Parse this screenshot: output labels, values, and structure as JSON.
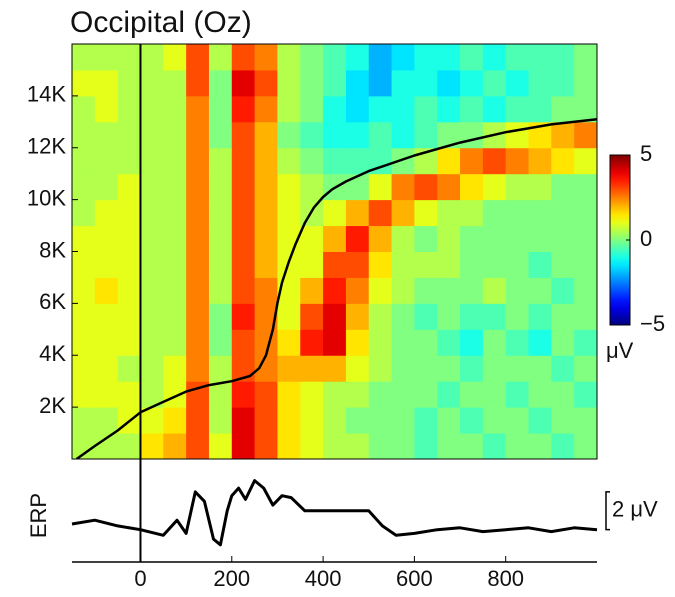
{
  "chart_data": [
    {
      "type": "heatmap",
      "title": "Occipital (Oz)",
      "x_edges": [
        -150,
        -100,
        -50,
        0,
        50,
        100,
        150,
        200,
        250,
        300,
        350,
        400,
        450,
        500,
        550,
        600,
        650,
        700,
        750,
        800,
        850,
        900,
        950,
        1000
      ],
      "y_edges": [
        0,
        1000,
        2000,
        3000,
        4000,
        5000,
        6000,
        7000,
        8000,
        9000,
        10000,
        11000,
        12000,
        13000,
        14000,
        15000,
        16000
      ],
      "z": [
        [
          0.5,
          0.5,
          0.5,
          1.5,
          2,
          3,
          1,
          4,
          3,
          1.5,
          1,
          0.5,
          0.5,
          0,
          0,
          -0.5,
          0,
          0,
          -0.5,
          0,
          0,
          -0.5,
          0
        ],
        [
          0.5,
          0.5,
          1,
          1,
          1.5,
          3,
          0.5,
          4,
          3,
          1.5,
          1,
          0.5,
          0,
          0,
          0,
          -0.5,
          0,
          -0.5,
          0,
          0,
          -0.5,
          0,
          0
        ],
        [
          1,
          1,
          1,
          0.5,
          1,
          3,
          0.5,
          3.5,
          3,
          1.5,
          1,
          0.5,
          0.5,
          0,
          0,
          0,
          -0.5,
          0,
          0,
          -0.5,
          0,
          0,
          -0.5
        ],
        [
          1,
          1,
          0.5,
          0.5,
          1,
          2.5,
          0.5,
          3,
          2.5,
          2,
          2,
          2,
          1,
          0.5,
          0,
          0,
          0,
          -0.5,
          0,
          0,
          0,
          -0.5,
          0
        ],
        [
          1,
          1,
          1,
          0.5,
          0.5,
          2.5,
          0,
          3,
          2.5,
          1.5,
          3.5,
          4,
          1.5,
          0.5,
          0,
          0,
          -0.5,
          -1,
          0,
          -0.5,
          -1,
          0,
          -0.5
        ],
        [
          1,
          1,
          1,
          0.5,
          0.5,
          2.5,
          0,
          3.5,
          2.5,
          1,
          3,
          4,
          2,
          0.5,
          0,
          -0.5,
          0,
          -0.5,
          -0.5,
          0,
          -0.5,
          0,
          0
        ],
        [
          1,
          1.5,
          1,
          0.5,
          0.5,
          2.5,
          0.5,
          3,
          2.5,
          1,
          2,
          3.5,
          2.5,
          1,
          0.5,
          0,
          0,
          0,
          0.5,
          0,
          0,
          -0.5,
          0
        ],
        [
          1,
          1,
          1,
          0.5,
          0.5,
          2.5,
          0.5,
          3,
          2,
          1,
          1,
          3,
          3,
          1.5,
          0.5,
          0.5,
          0.5,
          0,
          0,
          0,
          -0.5,
          0,
          0
        ],
        [
          1,
          1,
          1,
          0.5,
          0.5,
          2.5,
          0.5,
          3,
          2,
          1,
          1,
          2,
          3.5,
          2,
          0.5,
          0,
          0.5,
          0,
          0,
          0,
          0,
          0,
          0
        ],
        [
          0.5,
          1,
          1,
          0.5,
          0.5,
          2.5,
          0.5,
          3,
          2,
          1,
          0.5,
          1,
          2,
          3,
          2,
          1,
          0.5,
          0.5,
          0,
          0,
          0,
          0,
          0
        ],
        [
          0.5,
          0.5,
          1,
          0.5,
          0.5,
          2.5,
          0.5,
          3,
          2,
          1,
          0.5,
          0,
          0,
          1,
          2.5,
          3,
          2.5,
          1.5,
          1,
          0.5,
          0.5,
          0,
          0
        ],
        [
          0.5,
          0.5,
          0.5,
          0.5,
          0.5,
          2.5,
          0.5,
          3,
          2,
          0.5,
          0,
          -0.5,
          -0.5,
          -0.5,
          0,
          0.5,
          1.5,
          2.5,
          3,
          2.5,
          2,
          1.5,
          1
        ],
        [
          0.5,
          0.5,
          0.5,
          0.5,
          0.5,
          2.5,
          0,
          3,
          2,
          0,
          -0.5,
          -1,
          -1,
          -0.5,
          -1,
          -0.5,
          0,
          0,
          0.5,
          1,
          1.5,
          2,
          2.5
        ],
        [
          0.5,
          1,
          0.5,
          0.5,
          0.5,
          2.5,
          0,
          3.5,
          2.5,
          0.5,
          0,
          -1,
          -1.5,
          -1,
          -1,
          -0.5,
          -1,
          -0.5,
          -1,
          -0.5,
          -0.5,
          0,
          0
        ],
        [
          1,
          1,
          0.5,
          0.5,
          0.5,
          3,
          0,
          4,
          3,
          0.5,
          0,
          -0.5,
          -1.5,
          -2,
          -1,
          -1,
          -1.5,
          -1,
          -0.5,
          -1,
          -0.5,
          -0.5,
          0
        ],
        [
          0.5,
          0.5,
          0.5,
          0.5,
          1,
          3,
          0.5,
          3,
          2.5,
          0.5,
          0,
          -0.5,
          -1,
          -2,
          -1.5,
          -1,
          -1,
          -0.5,
          -1,
          -0.5,
          -0.5,
          -0.5,
          0
        ]
      ],
      "xlim": [
        -150,
        1000
      ],
      "ylim": [
        0,
        16000
      ],
      "yticks": [
        {
          "value": 2000,
          "label": "2K"
        },
        {
          "value": 4000,
          "label": "4K"
        },
        {
          "value": 6000,
          "label": "6K"
        },
        {
          "value": 8000,
          "label": "8K"
        },
        {
          "value": 10000,
          "label": "10K"
        },
        {
          "value": 12000,
          "label": "12K"
        },
        {
          "value": 14000,
          "label": "14K"
        }
      ],
      "colorbar": {
        "lim": [
          -5,
          5
        ],
        "ticks": [
          5,
          0,
          {
            "value": -5,
            "label": "−5"
          }
        ],
        "label": "μV"
      },
      "rt_curve": {
        "color": "#000000",
        "x": [
          -140,
          -100,
          -50,
          0,
          50,
          100,
          150,
          200,
          240,
          260,
          275,
          290,
          300,
          310,
          325,
          340,
          360,
          380,
          400,
          420,
          450,
          500,
          600,
          700,
          800,
          900,
          1000
        ],
        "y": [
          0,
          500,
          1100,
          1800,
          2200,
          2600,
          2850,
          3000,
          3200,
          3500,
          4000,
          5000,
          6000,
          6800,
          7600,
          8300,
          9100,
          9700,
          10100,
          10400,
          10700,
          11100,
          11700,
          12200,
          12600,
          12900,
          13100
        ]
      }
    },
    {
      "type": "line",
      "ylabel": "ERP",
      "color": "#000000",
      "x": [
        -150,
        -100,
        -50,
        0,
        50,
        80,
        100,
        120,
        140,
        160,
        175,
        190,
        200,
        215,
        230,
        250,
        270,
        290,
        310,
        330,
        360,
        400,
        450,
        500,
        530,
        560,
        600,
        650,
        700,
        750,
        800,
        850,
        900,
        950,
        1000
      ],
      "values": [
        0.3,
        0.5,
        0.2,
        0,
        -0.3,
        0.5,
        -0.2,
        2,
        1.5,
        -0.5,
        -0.8,
        1,
        1.8,
        2.2,
        1.6,
        2.6,
        2.2,
        1.3,
        1.8,
        1.7,
        1,
        1,
        1,
        1,
        0.2,
        -0.3,
        -0.2,
        0,
        0.1,
        -0.1,
        0,
        0.1,
        -0.1,
        0.1,
        0
      ],
      "xlim": [
        -150,
        1000
      ],
      "ylim": [
        -1.5,
        3
      ],
      "xticks": [
        0,
        200,
        400,
        600,
        800
      ],
      "scale_bar": {
        "value": 2,
        "label": "2 μV"
      }
    }
  ]
}
